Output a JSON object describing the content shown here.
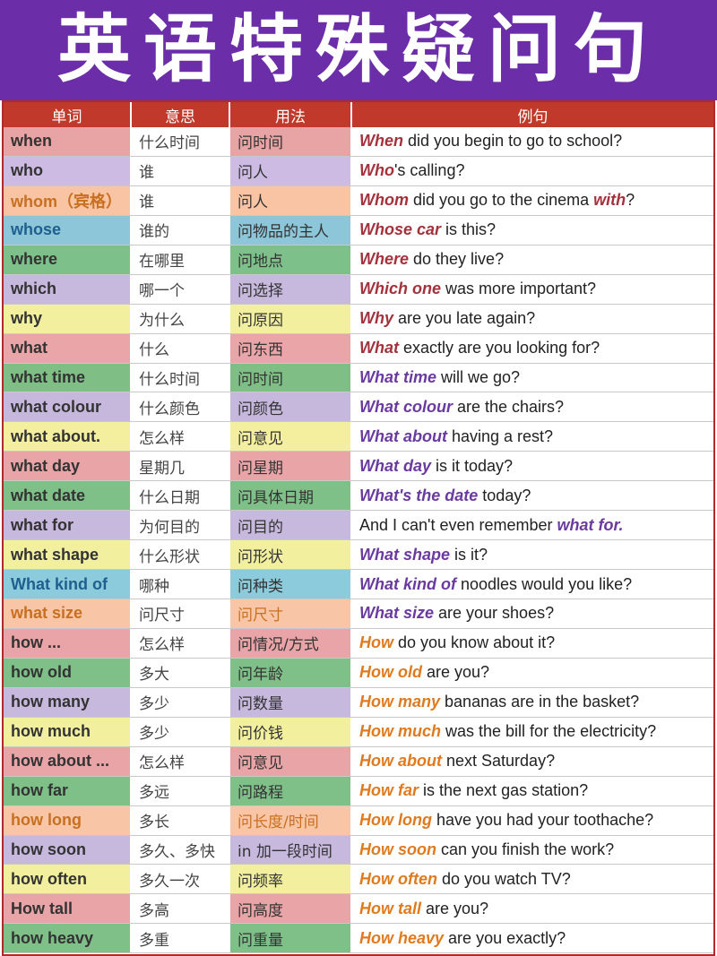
{
  "title": "英语特殊疑问句",
  "headers": {
    "word": "单词",
    "meaning": "意思",
    "usage": "用法",
    "example": "例句"
  },
  "rows": [
    {
      "word": "when",
      "meaning": "什么时间",
      "usage": "问时间",
      "kw": "When",
      "rest": "did you begin to go to school?",
      "bg": "#e8a4a4",
      "wordColor": "#333333",
      "usageColor": "#333333",
      "kwColor": "#a3323c"
    },
    {
      "word": "who",
      "meaning": "谁",
      "usage": "问人",
      "kw": "Who",
      "rest": "'s calling?",
      "bg": "#cdbbe3",
      "wordColor": "#333333",
      "usageColor": "#333333",
      "kwColor": "#a3323c"
    },
    {
      "word": "whom（宾格）",
      "meaning": "谁",
      "usage": "问人",
      "kw": "Whom",
      "rest": "did you go to the cinema",
      "kw2": "with",
      "rest2": "?",
      "bg": "#f8c4a4",
      "wordColor": "#c8701f",
      "usageColor": "#333333",
      "kwColor": "#a3323c"
    },
    {
      "word": "whose",
      "meaning": "谁的",
      "usage": "问物品的主人",
      "kw": "Whose car",
      "rest": "is this?",
      "bg": "#8cc6d8",
      "wordColor": "#1f5f8f",
      "usageColor": "#333333",
      "kwColor": "#a3323c"
    },
    {
      "word": "where",
      "meaning": "在哪里",
      "usage": "问地点",
      "kw": "Where",
      "rest": "do they live?",
      "bg": "#7dc08a",
      "wordColor": "#333333",
      "usageColor": "#333333",
      "kwColor": "#a3323c"
    },
    {
      "word": "which",
      "meaning": "哪一个",
      "usage": "问选择",
      "kw": "Which one",
      "rest": "was more important?",
      "bg": "#c7b8de",
      "wordColor": "#333333",
      "usageColor": "#333333",
      "kwColor": "#a3323c"
    },
    {
      "word": "why",
      "meaning": "为什么",
      "usage": "问原因",
      "kw": "Why",
      "rest": "are you late again?",
      "bg": "#f2ef9f",
      "wordColor": "#333333",
      "usageColor": "#333333",
      "kwColor": "#a3323c"
    },
    {
      "word": "what",
      "meaning": "什么",
      "usage": "问东西",
      "kw": "What",
      "rest": "exactly are you looking for?",
      "bg": "#e9a5a8",
      "wordColor": "#333333",
      "usageColor": "#333333",
      "kwColor": "#a3323c"
    },
    {
      "word": "what time",
      "meaning": "什么时间",
      "usage": "问时间",
      "kw": "What time",
      "rest": "will we go?",
      "bg": "#7fbf86",
      "wordColor": "#333333",
      "usageColor": "#333333",
      "kwColor": "#6a3aa0"
    },
    {
      "word": "what colour",
      "meaning": "什么颜色",
      "usage": "问颜色",
      "kw": "What colour",
      "rest": "are the chairs?",
      "bg": "#c6b7dd",
      "wordColor": "#333333",
      "usageColor": "#333333",
      "kwColor": "#6a3aa0"
    },
    {
      "word": "what about.",
      "meaning": "怎么样",
      "usage": "问意见",
      "kw": "What about",
      "rest": "having a rest?",
      "bg": "#f3ef9e",
      "wordColor": "#333333",
      "usageColor": "#333333",
      "kwColor": "#6a3aa0"
    },
    {
      "word": "what day",
      "meaning": "星期几",
      "usage": "问星期",
      "kw": "What day",
      "rest": "is it today?",
      "bg": "#e8a4a7",
      "wordColor": "#333333",
      "usageColor": "#333333",
      "kwColor": "#6a3aa0"
    },
    {
      "word": "what date",
      "meaning": "什么日期",
      "usage": "问具体日期",
      "kw": "What's the date",
      "rest": "today?",
      "bg": "#7fbf88",
      "wordColor": "#333333",
      "usageColor": "#333333",
      "kwColor": "#6a3aa0"
    },
    {
      "word": "what for",
      "meaning": "为何目的",
      "usage": "问目的",
      "pre": "And I can't even remember",
      "kw": "what for.",
      "rest": "",
      "bg": "#c7b8de",
      "wordColor": "#333333",
      "usageColor": "#333333",
      "kwColor": "#6a3aa0"
    },
    {
      "word": "what shape",
      "meaning": "什么形状",
      "usage": "问形状",
      "kw": "What shape",
      "rest": "is it?",
      "bg": "#f2ef9f",
      "wordColor": "#333333",
      "usageColor": "#333333",
      "kwColor": "#6a3aa0"
    },
    {
      "word": "What kind of",
      "meaning": "哪种",
      "usage": "问种类",
      "kw": "What kind of",
      "rest": "noodles would you like?",
      "bg": "#8ccbdb",
      "wordColor": "#1f5f8f",
      "usageColor": "#333333",
      "kwColor": "#6a3aa0"
    },
    {
      "word": "what size",
      "meaning": "问尺寸",
      "usage": "问尺寸",
      "kw": "What size",
      "rest": "are your shoes?",
      "bg": "#f8c6a6",
      "wordColor": "#c8701f",
      "usageColor": "#c8701f",
      "kwColor": "#6a3aa0"
    },
    {
      "word": "how ...",
      "meaning": "怎么样",
      "usage": "问情况/方式",
      "kw": "How",
      "rest": "do you know about it?",
      "bg": "#e8a4a7",
      "wordColor": "#333333",
      "usageColor": "#333333",
      "kwColor": "#e07a1f"
    },
    {
      "word": "how old",
      "meaning": "多大",
      "usage": "问年龄",
      "kw": "How old",
      "rest": "are you?",
      "bg": "#7fbf88",
      "wordColor": "#333333",
      "usageColor": "#333333",
      "kwColor": "#e07a1f"
    },
    {
      "word": "how many",
      "meaning": "多少",
      "usage": "问数量",
      "kw": "How many",
      "rest": "bananas are in the basket?",
      "bg": "#c7b8de",
      "wordColor": "#333333",
      "usageColor": "#333333",
      "kwColor": "#e07a1f"
    },
    {
      "word": "how much",
      "meaning": "多少",
      "usage": "问价钱",
      "kw": "How much",
      "rest": "was the bill for the electricity?",
      "bg": "#f2ef9f",
      "wordColor": "#333333",
      "usageColor": "#333333",
      "kwColor": "#e07a1f"
    },
    {
      "word": "how about ...",
      "meaning": "怎么样",
      "usage": "问意见",
      "kw": "How about",
      "rest": "next Saturday?",
      "bg": "#e8a4a7",
      "wordColor": "#333333",
      "usageColor": "#333333",
      "kwColor": "#e07a1f"
    },
    {
      "word": "how far",
      "meaning": "多远",
      "usage": "问路程",
      "kw": "How far",
      "rest": "is the next gas station?",
      "bg": "#7fbf88",
      "wordColor": "#333333",
      "usageColor": "#333333",
      "kwColor": "#e07a1f"
    },
    {
      "word": "how long",
      "meaning": "多长",
      "usage": "问长度/时间",
      "kw": "How long",
      "rest": "have you had your toothache?",
      "bg": "#f8c6a6",
      "wordColor": "#c8701f",
      "usageColor": "#c8701f",
      "kwColor": "#e07a1f"
    },
    {
      "word": "how soon",
      "meaning": "多久、多快",
      "usage": "in 加一段时间",
      "kw": "How soon",
      "rest": "can you finish the work?",
      "bg": "#c7b8de",
      "wordColor": "#333333",
      "usageColor": "#333333",
      "kwColor": "#e07a1f"
    },
    {
      "word": "how often",
      "meaning": "多久一次",
      "usage": "问频率",
      "kw": "How often",
      "rest": "do you watch TV?",
      "bg": "#f2ef9f",
      "wordColor": "#333333",
      "usageColor": "#333333",
      "kwColor": "#e07a1f"
    },
    {
      "word": "How tall",
      "meaning": "多高",
      "usage": "问高度",
      "kw": "How tall",
      "rest": "are you?",
      "bg": "#e8a4a7",
      "wordColor": "#333333",
      "usageColor": "#333333",
      "kwColor": "#e07a1f"
    },
    {
      "word": "how heavy",
      "meaning": "多重",
      "usage": "问重量",
      "kw": "How heavy",
      "rest": "are you exactly?",
      "bg": "#7fbf88",
      "wordColor": "#333333",
      "usageColor": "#333333",
      "kwColor": "#e07a1f"
    }
  ]
}
